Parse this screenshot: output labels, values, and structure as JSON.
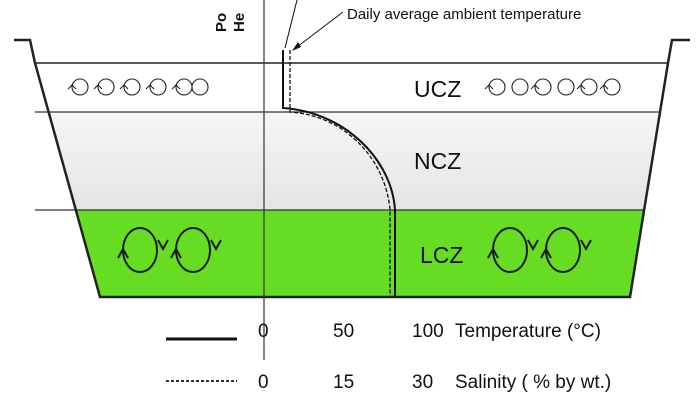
{
  "annotation": "Daily average ambient temperature",
  "axis_label_vertical": [
    "Po",
    "He"
  ],
  "zones": [
    {
      "id": "ucz",
      "label": "UCZ",
      "color": "#ffffff"
    },
    {
      "id": "ncz",
      "label": "NCZ",
      "color": "#ebebeb"
    },
    {
      "id": "lcz",
      "label": "LCZ",
      "color": "#66dd22"
    }
  ],
  "legend": [
    {
      "line_style": "solid",
      "ticks": [
        "0",
        "50",
        "100"
      ],
      "label": "Temperature (°C)"
    },
    {
      "line_style": "dashed",
      "ticks": [
        "0",
        "15",
        "30"
      ],
      "label": "Salinity ( % by wt.)"
    }
  ],
  "icons": {
    "ucz_circulation": "small-circulation-arrows-icon",
    "lcz_circulation": "large-circulation-arrows-icon"
  }
}
